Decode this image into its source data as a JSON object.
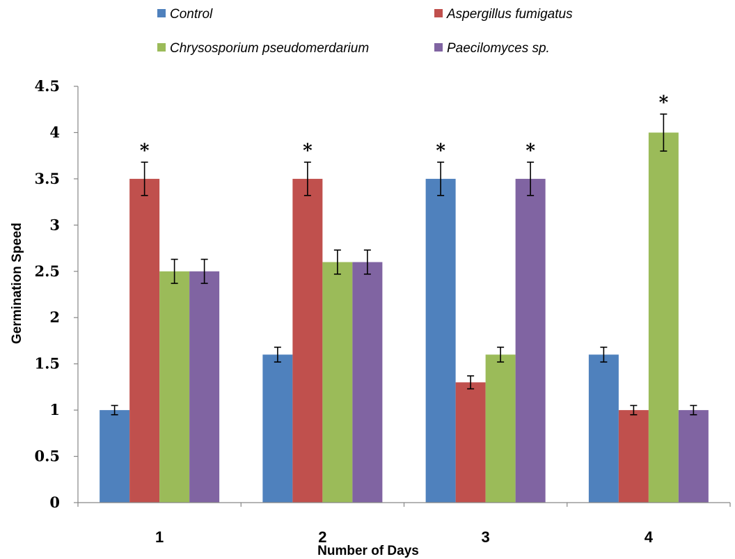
{
  "chart_data": {
    "type": "bar",
    "title": "",
    "xlabel": "Number of Days",
    "ylabel": "Germination Speed",
    "ylim": [
      0,
      4.5
    ],
    "yticks": [
      "0",
      "0.5",
      "1",
      "1.5",
      "2",
      "2.5",
      "3",
      "3.5",
      "4",
      "4.5"
    ],
    "categories": [
      "1",
      "2",
      "3",
      "4"
    ],
    "legend_position": "top",
    "grid": false,
    "series": [
      {
        "name": "Control",
        "color": "#4f81bd",
        "values": [
          1.0,
          1.6,
          3.5,
          1.6
        ],
        "errors": [
          0.05,
          0.08,
          0.18,
          0.08
        ],
        "significance": [
          "",
          "",
          "*",
          ""
        ]
      },
      {
        "name": "Aspergillus fumigatus",
        "color": "#c0504d",
        "values": [
          3.5,
          3.5,
          1.3,
          1.0
        ],
        "errors": [
          0.18,
          0.18,
          0.07,
          0.05
        ],
        "significance": [
          "*",
          "*",
          "",
          ""
        ]
      },
      {
        "name": "Chrysosporium pseudomerdarium",
        "color": "#9bbb59",
        "values": [
          2.5,
          2.6,
          1.6,
          4.0
        ],
        "errors": [
          0.13,
          0.13,
          0.08,
          0.2
        ],
        "significance": [
          "",
          "",
          "",
          "*"
        ]
      },
      {
        "name": "Paecilomyces sp.",
        "color": "#8064a2",
        "values": [
          2.5,
          2.6,
          3.5,
          1.0
        ],
        "errors": [
          0.13,
          0.13,
          0.18,
          0.05
        ],
        "significance": [
          "",
          "",
          "*",
          ""
        ]
      }
    ]
  }
}
